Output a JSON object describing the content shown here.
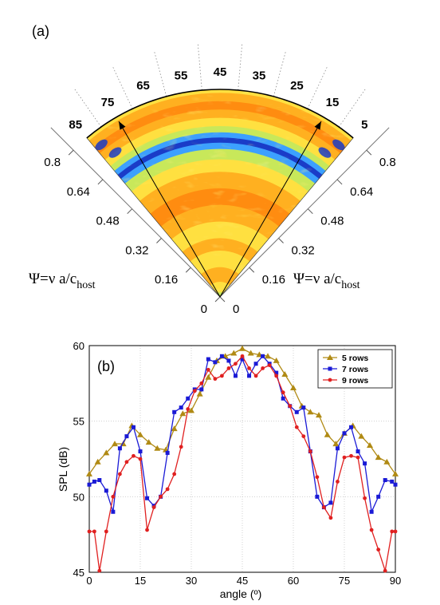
{
  "panel_a": {
    "label": "(a)",
    "angle_ticks": [
      "85",
      "75",
      "65",
      "55",
      "45",
      "35",
      "25",
      "15",
      "5"
    ],
    "radial_ticks": [
      "0",
      "0.16",
      "0.32",
      "0.48",
      "0.64",
      "0.8"
    ],
    "psi_symbol": "Ψ=ν a/c",
    "psi_subscript": "host",
    "colormap": [
      "#1a3cc8",
      "#3ca0ff",
      "#5ad6d6",
      "#c8e85a",
      "#ffe040",
      "#ffb020",
      "#ff8c10"
    ]
  },
  "chart_data": {
    "type": "line",
    "panel_label": "(b)",
    "xlabel": "angle (º)",
    "ylabel": "SPL (dB)",
    "xlim": [
      0,
      90
    ],
    "ylim": [
      45,
      60
    ],
    "xticks": [
      "0",
      "15",
      "30",
      "45",
      "60",
      "75",
      "90"
    ],
    "yticks": [
      "45",
      "50",
      "55",
      "60"
    ],
    "grid": true,
    "legend_position": "top-right",
    "series": [
      {
        "name": "5 rows",
        "color": "#b08a14",
        "marker": "triangle",
        "x": [
          0,
          2.5,
          5,
          7.5,
          10,
          12.5,
          15,
          17.5,
          20,
          22.5,
          25,
          27.5,
          30,
          32.5,
          35,
          37.5,
          40,
          42.5,
          45,
          47.5,
          50,
          52.5,
          55,
          57.5,
          60,
          62.5,
          65,
          67.5,
          70,
          72.5,
          75,
          77.5,
          80,
          82.5,
          85,
          87.5,
          90
        ],
        "values": [
          51.5,
          52.3,
          52.9,
          53.5,
          53.5,
          54.7,
          54.1,
          53.6,
          53.2,
          53.1,
          54.5,
          55.5,
          55.7,
          56.8,
          57.9,
          59.0,
          59.3,
          59.5,
          59.8,
          59.5,
          59.4,
          59.3,
          59.0,
          58.1,
          57.2,
          56.0,
          55.6,
          55.4,
          54.1,
          53.5,
          54.2,
          54.7,
          54.0,
          53.4,
          52.6,
          52.3,
          51.5
        ]
      },
      {
        "name": "7 rows",
        "color": "#1a1ad6",
        "marker": "square",
        "x": [
          0,
          1.5,
          3,
          5,
          7,
          9,
          11,
          13,
          15,
          17,
          19,
          21,
          23,
          25,
          27,
          29,
          31,
          33,
          35,
          37,
          39,
          41,
          43,
          45,
          47,
          49,
          51,
          53,
          55,
          57,
          59,
          61,
          63,
          65,
          67,
          69,
          71,
          73,
          75,
          77,
          79,
          81,
          83,
          85,
          87,
          89,
          90
        ],
        "values": [
          50.8,
          51.0,
          51.1,
          50.4,
          49.0,
          53.2,
          54.0,
          54.6,
          53.0,
          49.9,
          49.4,
          50.0,
          52.9,
          55.6,
          55.9,
          56.5,
          57.1,
          57.1,
          59.1,
          58.9,
          59.3,
          59.0,
          58.0,
          59.1,
          58.0,
          58.8,
          59.3,
          58.8,
          58.2,
          56.5,
          56.0,
          55.6,
          55.9,
          53.0,
          50.0,
          49.3,
          49.6,
          53.2,
          54.2,
          54.6,
          53.0,
          52.2,
          49.0,
          50.0,
          51.1,
          51.0,
          50.8
        ]
      },
      {
        "name": "9 rows",
        "color": "#e02020",
        "marker": "circle",
        "x": [
          0,
          1.5,
          3,
          5,
          7,
          9,
          11,
          13,
          15,
          17,
          19,
          21,
          23,
          25,
          27,
          29,
          31,
          33,
          35,
          37,
          39,
          41,
          43,
          45,
          47,
          49,
          51,
          53,
          55,
          57,
          59,
          61,
          63,
          65,
          67,
          69,
          71,
          73,
          75,
          77,
          79,
          81,
          83,
          85,
          87,
          89,
          90
        ],
        "values": [
          47.7,
          47.7,
          45.1,
          47.7,
          50.0,
          51.5,
          52.3,
          52.7,
          52.5,
          47.8,
          49.3,
          50.0,
          50.5,
          51.5,
          53.3,
          55.8,
          57.0,
          57.5,
          58.4,
          57.8,
          58.0,
          58.5,
          58.8,
          59.3,
          58.5,
          58.0,
          58.5,
          58.7,
          58.0,
          56.9,
          56.0,
          54.6,
          54.0,
          53.0,
          51.3,
          49.3,
          48.6,
          51.0,
          52.6,
          52.7,
          52.6,
          49.9,
          47.8,
          46.5,
          45.1,
          47.7,
          47.7
        ]
      }
    ]
  },
  "polar_data": {
    "type": "heatmap",
    "description_units": "angle 5-85 deg, radius Psi 0-0.8",
    "radial_range": [
      0,
      0.8
    ],
    "angular_range": [
      5,
      85
    ],
    "arrow_angles": [
      15,
      75
    ]
  }
}
